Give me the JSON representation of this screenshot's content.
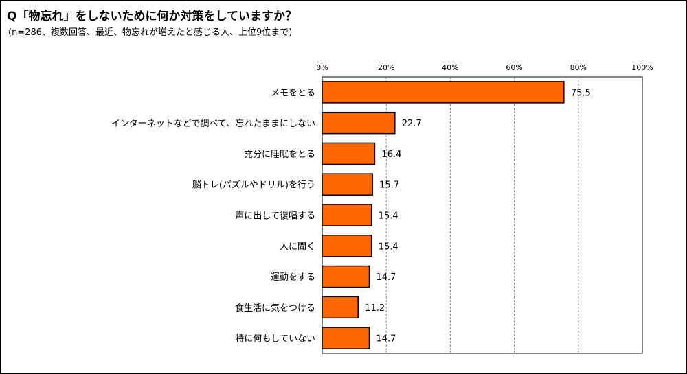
{
  "header": {
    "title": "Q「物忘れ」をしないために何か対策をしていますか？",
    "subtitle": "(n=286、複数回答、最近、物忘れが増えたと感じる人、上位9位まで)"
  },
  "colors": {
    "bar": "#FF6600",
    "bar_stroke": "#000000",
    "grid": "#888888"
  },
  "chart_data": {
    "type": "bar",
    "orientation": "horizontal",
    "categories": [
      "メモをとる",
      "インターネットなどで調べて、忘れたままにしない",
      "充分に睡眠をとる",
      "脳トレ(パズルやドリル)を行う",
      "声に出して復唱する",
      "人に聞く",
      "運動をする",
      "食生活に気をつける",
      "特に何もしていない"
    ],
    "values": [
      75.5,
      22.7,
      16.4,
      15.7,
      15.4,
      15.4,
      14.7,
      11.2,
      14.7
    ],
    "value_labels": [
      "75.5",
      "22.7",
      "16.4",
      "15.7",
      "15.4",
      "15.4",
      "14.7",
      "11.2",
      "14.7"
    ],
    "xlim": [
      0,
      100
    ],
    "ticks": [
      0,
      20,
      40,
      60,
      80,
      100
    ],
    "tick_labels": [
      "0%",
      "20%",
      "40%",
      "60%",
      "80%",
      "100%"
    ],
    "grid": true,
    "legend": "none"
  }
}
